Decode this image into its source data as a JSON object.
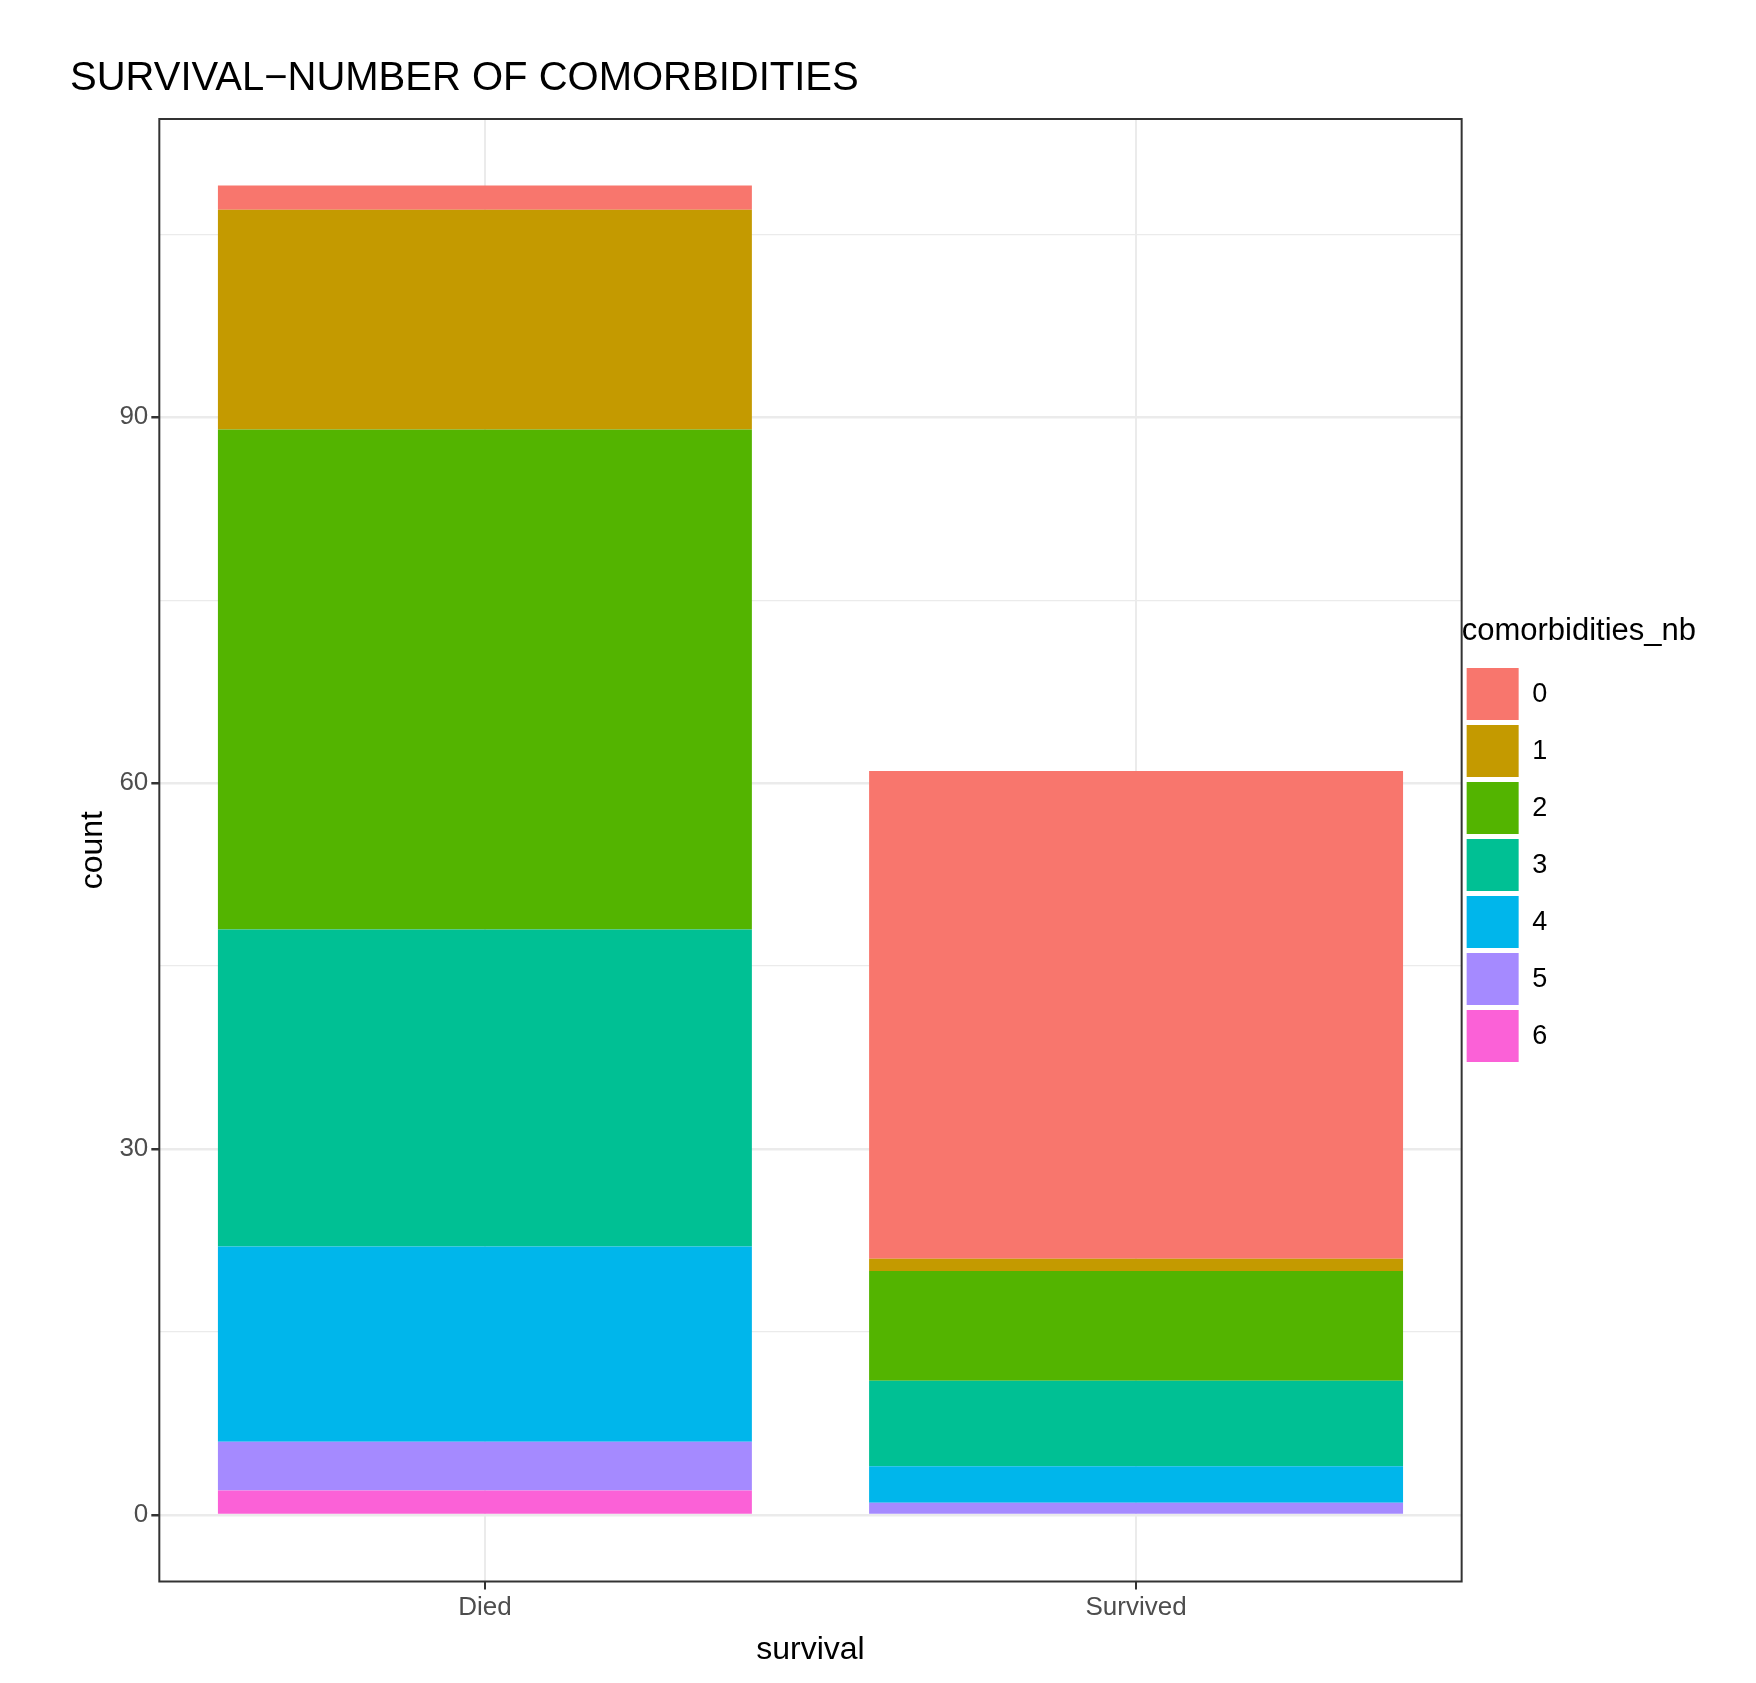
{
  "chart_data": {
    "type": "bar",
    "title": "SURVIVAL−NUMBER OF COMORBIDITIES",
    "xlabel": "survival",
    "ylabel": "count",
    "legend_title": "comorbidities_nb",
    "categories": [
      "Died",
      "Survived"
    ],
    "stacked": true,
    "grid": true,
    "legend": "right",
    "ylim": [
      -5.45,
      114.45
    ],
    "yticks": [
      0,
      {
        "value": 15,
        "label": null
      },
      30,
      {
        "value": 45,
        "label": null
      },
      60,
      {
        "value": 75,
        "label": null
      },
      90,
      {
        "value": 105,
        "label": null
      }
    ],
    "series": [
      {
        "name": "6",
        "color": "#fb61d7",
        "values": [
          2,
          0
        ]
      },
      {
        "name": "5",
        "color": "#a58aff",
        "values": [
          4,
          1
        ]
      },
      {
        "name": "4",
        "color": "#00b6eb",
        "values": [
          16,
          3
        ]
      },
      {
        "name": "3",
        "color": "#00c094",
        "values": [
          26,
          7
        ]
      },
      {
        "name": "2",
        "color": "#53b400",
        "values": [
          41,
          9
        ]
      },
      {
        "name": "1",
        "color": "#c49a00",
        "values": [
          18,
          1
        ]
      },
      {
        "name": "0",
        "color": "#f8766d",
        "values": [
          2,
          40
        ]
      }
    ]
  }
}
